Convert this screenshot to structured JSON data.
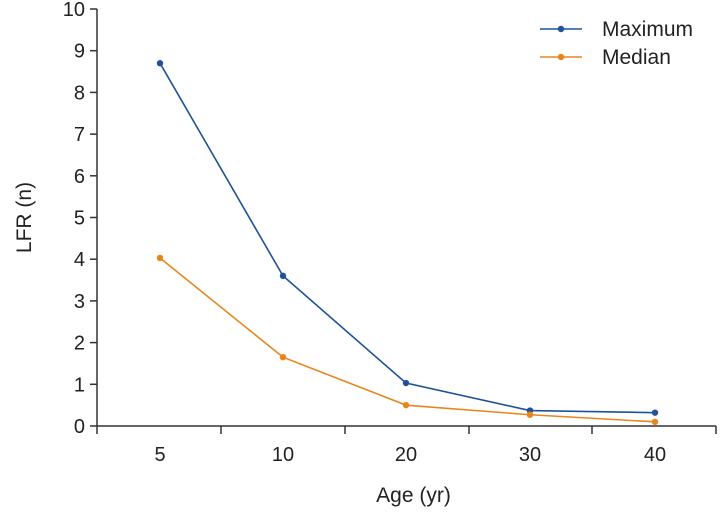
{
  "chart_data": {
    "type": "line",
    "title": "",
    "xlabel": "Age (yr)",
    "ylabel": "LFR (n)",
    "categories": [
      "5",
      "10",
      "20",
      "30",
      "40"
    ],
    "ylim": [
      0,
      10
    ],
    "yticks": [
      "0",
      "1",
      "2",
      "3",
      "4",
      "5",
      "6",
      "7",
      "8",
      "9",
      "10"
    ],
    "grid": false,
    "legend_position": "top-right",
    "series": [
      {
        "name": "Maximum",
        "color": "#1f5296",
        "values": [
          8.7,
          3.6,
          1.03,
          0.37,
          0.32
        ]
      },
      {
        "name": "Median",
        "color": "#e8861e",
        "values": [
          4.03,
          1.65,
          0.5,
          0.27,
          0.1
        ]
      }
    ]
  }
}
